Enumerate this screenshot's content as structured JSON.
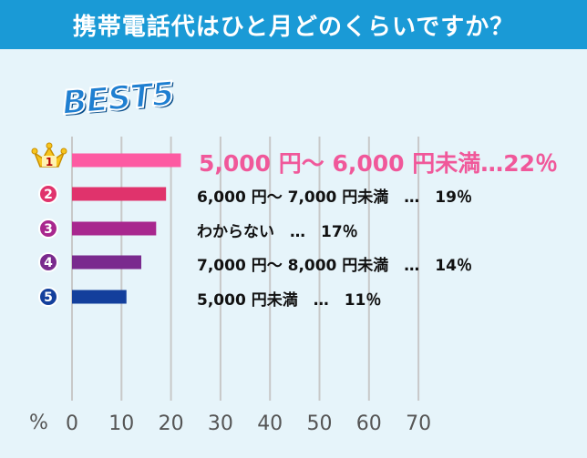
{
  "header": {
    "title": "携帯電話代はひと月どのくらいですか？"
  },
  "badge": {
    "text": "BEST5"
  },
  "chart_data": {
    "type": "bar",
    "orientation": "horizontal",
    "title": "携帯電話代はひと月どのくらいですか？",
    "categories": [
      "5,000円〜6,000円未満",
      "6,000円〜7,000円未満",
      "わからない",
      "7,000円〜8,000円未満",
      "5,000円未満"
    ],
    "values": [
      22,
      19,
      17,
      14,
      11
    ],
    "labels": [
      "5,000 円〜 6,000 円未満…22％",
      "6,000 円〜 7,000 円未満　…　19％",
      "わからない　…　17％",
      "7,000 円〜 8,000 円未満　…　14％",
      "5,000 円未満　…　11％"
    ],
    "ranks": [
      "1",
      "2",
      "3",
      "4",
      "5"
    ],
    "xlim": [
      0,
      70
    ],
    "xticks": [
      "0",
      "10",
      "20",
      "30",
      "40",
      "50",
      "60",
      "70"
    ],
    "xlabel": "%",
    "grid": true,
    "colors": [
      "#fd5aa2",
      "#e0336c",
      "#a8278e",
      "#7a2a8e",
      "#133f9c"
    ]
  },
  "colors": {
    "header_bg": "#1a9ad6",
    "page_bg": "#e6f4fa",
    "grid": "#c8c8c8",
    "crown": "#f7c51e"
  }
}
